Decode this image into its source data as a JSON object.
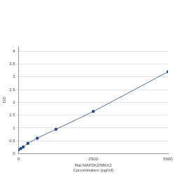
{
  "chart_data": {
    "type": "scatter",
    "x_label": [
      "Rat MAP2K2/MKK2",
      "Concentration (pg/ml)"
    ],
    "y_label": "OD",
    "x": [
      0,
      78,
      156,
      312,
      625,
      1250,
      2500,
      5000
    ],
    "values": [
      0.15,
      0.2,
      0.26,
      0.4,
      0.6,
      0.95,
      1.65,
      3.2
    ],
    "color": "#2c4a86",
    "marker": "circle",
    "line_style": "solid",
    "xlim": [
      0,
      5000
    ],
    "xticks": [
      0,
      2500,
      5000
    ],
    "ylim": [
      0,
      4.2
    ],
    "yticks": [
      0,
      0.5,
      1,
      1.5,
      2,
      2.5,
      3,
      3.5,
      4
    ],
    "grid": "y"
  }
}
